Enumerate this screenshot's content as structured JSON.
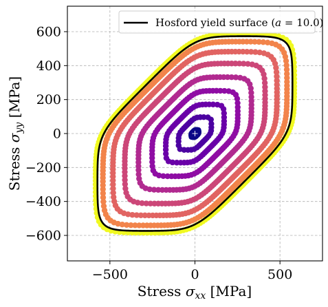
{
  "chart_data": {
    "type": "scatter",
    "title": "",
    "xlabel": "Stress σ_xx [MPa]",
    "ylabel": "Stress σ_yy [MPa]",
    "xlabel_main": "Stress ",
    "xlabel_sym": "σ",
    "xlabel_sub": "xx",
    "xlabel_unit": " [MPa]",
    "ylabel_main": "Stress ",
    "ylabel_sym": "σ",
    "ylabel_sub": "yy",
    "ylabel_unit": " [MPa]",
    "xlim": [
      -750,
      750
    ],
    "ylim": [
      -750,
      750
    ],
    "xticks": [
      -500,
      0,
      500
    ],
    "xtick_labels": [
      "−500",
      "0",
      "500"
    ],
    "yticks": [
      600,
      400,
      200,
      0,
      -200,
      -400,
      -600
    ],
    "ytick_labels": [
      "600",
      "400",
      "200",
      "0",
      "−200",
      "−400",
      "−600"
    ],
    "grid": true,
    "legend_position": "top-right",
    "legend": {
      "label_prefix": "Hosford yield surface (",
      "label_param": "a",
      "label_value": " = 10.0)",
      "color": "#000000"
    },
    "yield_surface": {
      "name": "Hosford yield surface",
      "exponent": 10.0,
      "scale_MPa": 535
    },
    "scatter_rings": [
      {
        "name": "ring-1",
        "scale_MPa": 20,
        "color": "#0d0887"
      },
      {
        "name": "ring-2",
        "scale_MPa": 90,
        "color": "#4c02a1"
      },
      {
        "name": "ring-3",
        "scale_MPa": 160,
        "color": "#6a00a8"
      },
      {
        "name": "ring-4",
        "scale_MPa": 235,
        "color": "#8f0da4"
      },
      {
        "name": "ring-5",
        "scale_MPa": 310,
        "color": "#b12a90"
      },
      {
        "name": "ring-6",
        "scale_MPa": 385,
        "color": "#cc4778"
      },
      {
        "name": "ring-7",
        "scale_MPa": 450,
        "color": "#e16462"
      },
      {
        "name": "ring-8",
        "scale_MPa": 505,
        "color": "#f2844b"
      },
      {
        "name": "ring-9",
        "scale_MPa": 545,
        "color": "#f0f921"
      }
    ],
    "origin_marker": {
      "x": 0,
      "y": 0,
      "color": "#0d0887"
    }
  }
}
